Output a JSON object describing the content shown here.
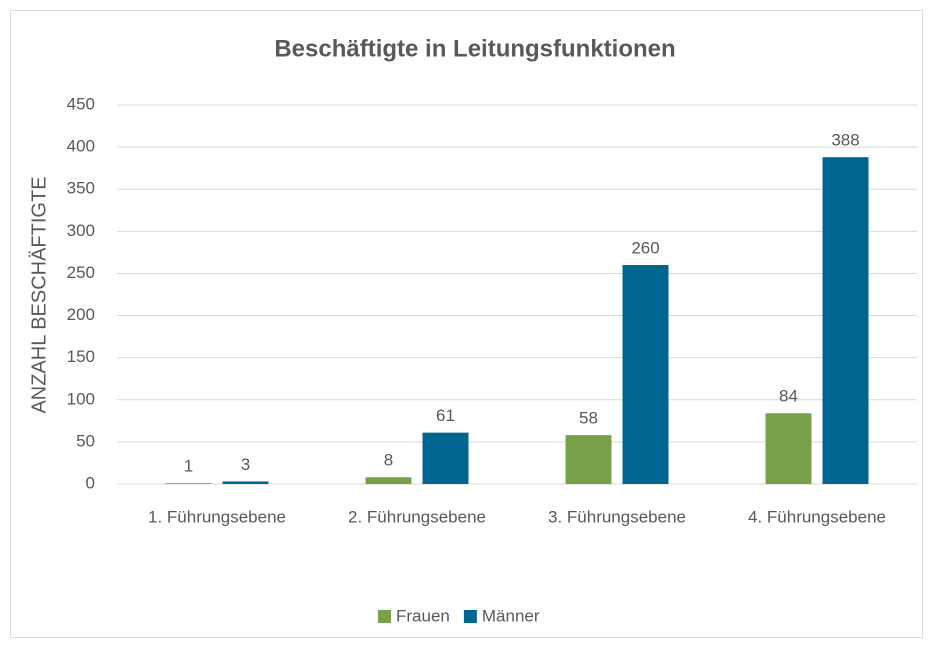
{
  "chart_data": {
    "type": "bar",
    "title": "Beschäftigte in Leitungsfunktionen",
    "ylabel": "ANZAHL BESCHÄFTIGTE",
    "categories": [
      "1. Führungsebene",
      "2. Führungsebene",
      "3. Führungsebene",
      "4. Führungsebene"
    ],
    "series": [
      {
        "name": "Frauen",
        "color": "#78a04b",
        "values": [
          1,
          8,
          58,
          84
        ]
      },
      {
        "name": "Männer",
        "color": "#006690",
        "values": [
          3,
          61,
          260,
          388
        ]
      }
    ],
    "ylim": [
      0,
      450
    ],
    "yticks": [
      0,
      50,
      100,
      150,
      200,
      250,
      300,
      350,
      400,
      450
    ],
    "grid": true,
    "legend": "bottom"
  }
}
